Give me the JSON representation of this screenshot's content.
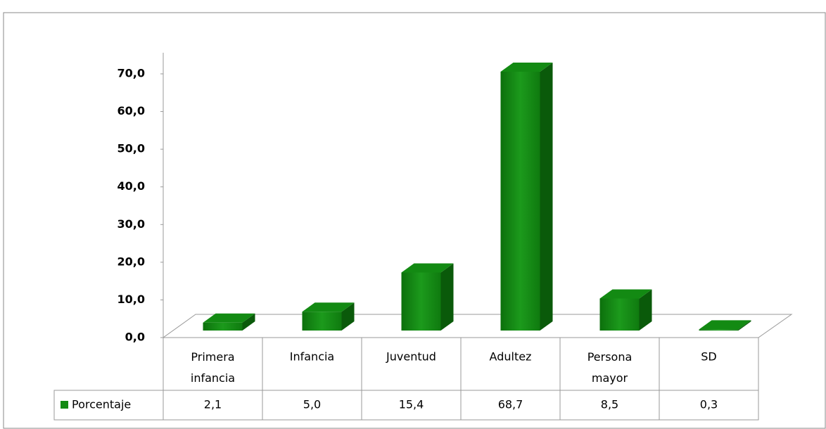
{
  "chart_data": {
    "type": "bar3d",
    "categories": [
      "Primera infancia",
      "Infancia",
      "Juventud",
      "Adultez",
      "Persona mayor",
      "SD"
    ],
    "series": [
      {
        "name": "Porcentaje",
        "color": "#138a13",
        "values": [
          2.1,
          5.0,
          15.4,
          68.7,
          8.5,
          0.3
        ],
        "value_labels": [
          "2,1",
          "5,0",
          "15,4",
          "68,7",
          "8,5",
          "0,3"
        ]
      }
    ],
    "ylim": [
      0,
      70
    ],
    "yticks": [
      {
        "value": 0,
        "label": "0,0"
      },
      {
        "value": 10,
        "label": "10,0"
      },
      {
        "value": 20,
        "label": "20,0"
      },
      {
        "value": 30,
        "label": "30,0"
      },
      {
        "value": 40,
        "label": "40,0"
      },
      {
        "value": 50,
        "label": "50,0"
      },
      {
        "value": 60,
        "label": "60,0"
      },
      {
        "value": 70,
        "label": "70,0"
      }
    ],
    "data_table": true
  }
}
